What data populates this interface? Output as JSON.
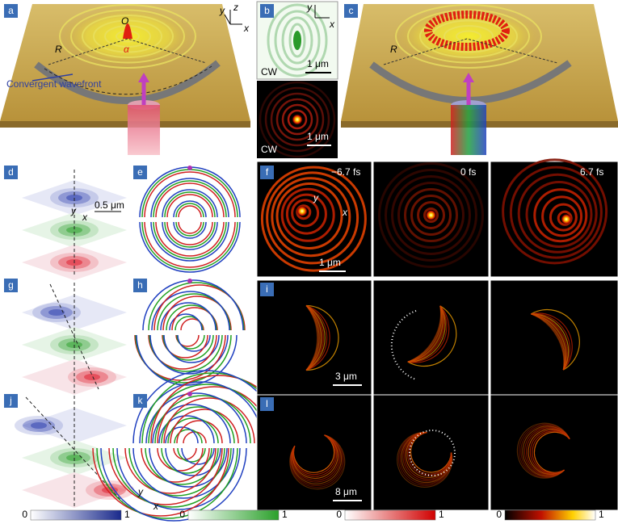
{
  "panels": {
    "a": {
      "label": "a",
      "origin": "O",
      "angle": "α",
      "radius": "R",
      "annotation": "Convergent wavefront",
      "axes": [
        "y",
        "z",
        "x"
      ]
    },
    "b": {
      "label": "b",
      "axes": [
        "y",
        "x"
      ],
      "scale_top": "1 μm",
      "mode_top": "CW",
      "mode_bottom": "CW",
      "scale_bottom": "1 μm"
    },
    "c": {
      "label": "c",
      "radius": "R"
    },
    "d": {
      "label": "d",
      "axes": [
        "y",
        "x"
      ],
      "scale": "0.5 μm"
    },
    "e": {
      "label": "e"
    },
    "f": {
      "label": "f",
      "times": [
        "−6.7 fs",
        "0 fs",
        "6.7 fs"
      ],
      "axes": [
        "y",
        "x"
      ],
      "scale": "1 μm"
    },
    "g": {
      "label": "g"
    },
    "h": {
      "label": "h"
    },
    "i": {
      "label": "i",
      "scale": "3 μm"
    },
    "j": {
      "label": "j"
    },
    "k": {
      "label": "k",
      "axes": [
        "y",
        "x"
      ]
    },
    "l": {
      "label": "l",
      "scale": "8 μm"
    }
  },
  "colorbars": [
    {
      "min": 0,
      "max": 1
    },
    {
      "min": 0,
      "max": 1
    },
    {
      "min": 0,
      "max": 1
    },
    {
      "min": 0,
      "max": 1
    }
  ]
}
